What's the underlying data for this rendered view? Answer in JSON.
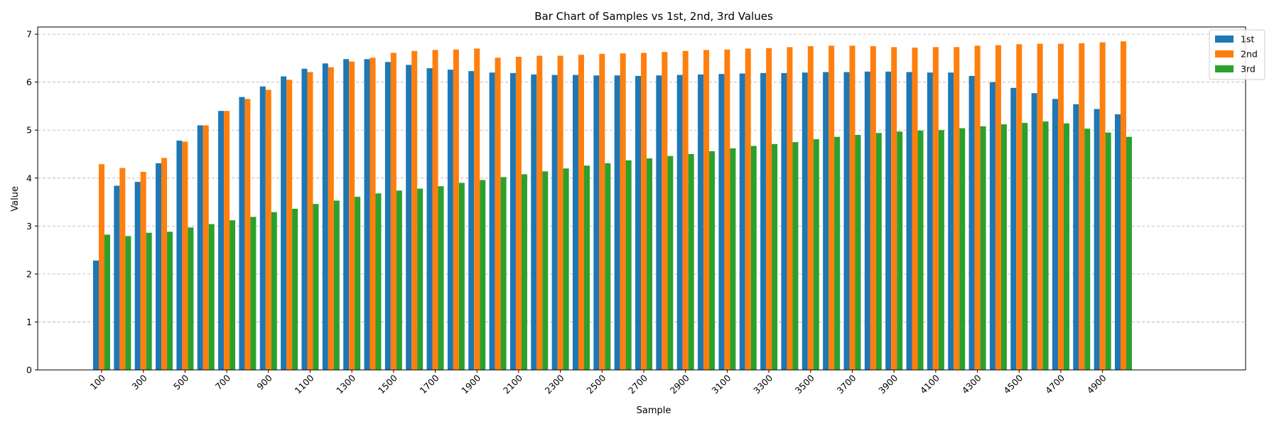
{
  "chart_data": {
    "type": "bar",
    "title": "Bar Chart of Samples vs 1st, 2nd, 3rd Values",
    "xlabel": "Sample",
    "ylabel": "Value",
    "ylim": [
      0,
      7.15
    ],
    "yticks": [
      0,
      1,
      2,
      3,
      4,
      5,
      6,
      7
    ],
    "grid": "y-dashed",
    "legend_position": "top-right",
    "categories": [
      100,
      200,
      300,
      400,
      500,
      600,
      700,
      800,
      900,
      1000,
      1100,
      1200,
      1300,
      1400,
      1500,
      1600,
      1700,
      1800,
      1900,
      2000,
      2100,
      2200,
      2300,
      2400,
      2500,
      2600,
      2700,
      2800,
      2900,
      3000,
      3100,
      3200,
      3300,
      3400,
      3500,
      3600,
      3700,
      3800,
      3900,
      4000,
      4100,
      4200,
      4300,
      4400,
      4500,
      4600,
      4700,
      4800,
      4900,
      5000
    ],
    "xtick_labels": [
      "100",
      "300",
      "500",
      "700",
      "900",
      "1100",
      "1300",
      "1500",
      "1700",
      "1900",
      "2100",
      "2300",
      "2500",
      "2700",
      "2900",
      "3100",
      "3300",
      "3500",
      "3700",
      "3900",
      "4100",
      "4300",
      "4500",
      "4700",
      "4900"
    ],
    "series": [
      {
        "name": "1st",
        "color": "#1f77b4",
        "values": [
          2.28,
          3.84,
          3.92,
          4.31,
          4.78,
          5.1,
          5.4,
          5.69,
          5.91,
          6.12,
          6.28,
          6.39,
          6.48,
          6.48,
          6.42,
          6.36,
          6.29,
          6.26,
          6.23,
          6.2,
          6.19,
          6.16,
          6.15,
          6.15,
          6.14,
          6.14,
          6.13,
          6.14,
          6.15,
          6.16,
          6.17,
          6.18,
          6.19,
          6.19,
          6.2,
          6.21,
          6.21,
          6.22,
          6.22,
          6.21,
          6.2,
          6.2,
          6.13,
          6.0,
          5.88,
          5.77,
          5.65,
          5.54,
          5.44,
          5.33
        ]
      },
      {
        "name": "2nd",
        "color": "#ff7f0e",
        "values": [
          4.29,
          4.21,
          4.13,
          4.42,
          4.76,
          5.1,
          5.4,
          5.65,
          5.84,
          6.05,
          6.21,
          6.31,
          6.43,
          6.51,
          6.61,
          6.65,
          6.67,
          6.68,
          6.7,
          6.51,
          6.53,
          6.55,
          6.55,
          6.57,
          6.59,
          6.6,
          6.61,
          6.63,
          6.65,
          6.67,
          6.68,
          6.7,
          6.71,
          6.73,
          6.75,
          6.76,
          6.76,
          6.75,
          6.73,
          6.72,
          6.73,
          6.73,
          6.76,
          6.77,
          6.79,
          6.8,
          6.8,
          6.81,
          6.83,
          6.85
        ]
      },
      {
        "name": "3rd",
        "color": "#2ca02c",
        "values": [
          2.82,
          2.79,
          2.86,
          2.88,
          2.97,
          3.04,
          3.12,
          3.19,
          3.29,
          3.36,
          3.46,
          3.53,
          3.61,
          3.68,
          3.74,
          3.78,
          3.83,
          3.9,
          3.96,
          4.02,
          4.08,
          4.14,
          4.2,
          4.26,
          4.31,
          4.37,
          4.41,
          4.46,
          4.5,
          4.56,
          4.62,
          4.67,
          4.71,
          4.75,
          4.81,
          4.86,
          4.9,
          4.94,
          4.97,
          4.99,
          5.0,
          5.04,
          5.08,
          5.12,
          5.15,
          5.18,
          5.14,
          5.03,
          4.95,
          4.86
        ]
      }
    ]
  }
}
